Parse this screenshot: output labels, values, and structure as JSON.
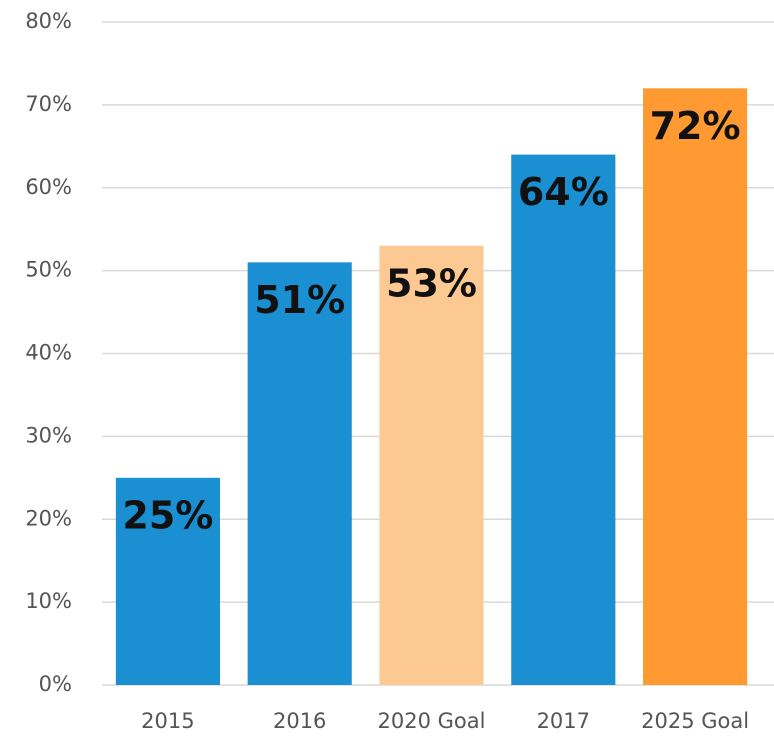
{
  "chart_data": {
    "type": "bar",
    "categories": [
      "2015",
      "2016",
      "2020 Goal",
      "2017",
      "2025 Goal"
    ],
    "values": [
      25,
      51,
      53,
      64,
      72
    ],
    "value_labels": [
      "25%",
      "51%",
      "53%",
      "64%",
      "72%"
    ],
    "colors": [
      "#1a8fd1",
      "#1a8fd1",
      "#fdc993",
      "#1a8fd1",
      "#ff9a33"
    ],
    "ylim": [
      0,
      80
    ],
    "yticks": [
      {
        "value": 0,
        "label": "0%"
      },
      {
        "value": 10,
        "label": "10%"
      },
      {
        "value": 20,
        "label": "20%"
      },
      {
        "value": 30,
        "label": "30%"
      },
      {
        "value": 40,
        "label": "40%"
      },
      {
        "value": 50,
        "label": "50%"
      },
      {
        "value": 60,
        "label": "60%"
      },
      {
        "value": 70,
        "label": "70%"
      },
      {
        "value": 80,
        "label": "80%"
      }
    ],
    "grid": true
  }
}
